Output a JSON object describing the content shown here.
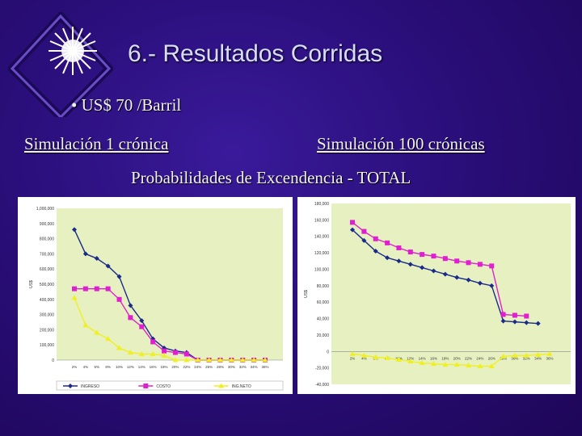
{
  "slide": {
    "title": "6.- Resultados Corridas",
    "bullet": "• US$ 70 /Barril",
    "subtitle_left": "Simulación 1 crónica",
    "subtitle_right": "Simulación 100 crónicas",
    "caption": "Probabilidades de Excendencia - TOTAL"
  },
  "colors": {
    "background": "#2a0e7a",
    "plot_background": "#e6f0c0",
    "series": [
      "#1a2a8a",
      "#e020d0",
      "#f0f020"
    ]
  },
  "chart_data": [
    {
      "type": "line",
      "ylabel": "US$",
      "ylim": [
        0,
        1000000
      ],
      "yticks": [
        "1,000,000",
        "900,000",
        "800,000",
        "700,000",
        "600,000",
        "500,000",
        "400,000",
        "300,000",
        "200,000",
        "100,000",
        "0"
      ],
      "x": [
        "2%",
        "4%",
        "6%",
        "8%",
        "10%",
        "12%",
        "14%",
        "16%",
        "18%",
        "20%",
        "22%",
        "24%",
        "26%",
        "28%",
        "30%",
        "32%",
        "34%",
        "36%"
      ],
      "series": [
        {
          "name": "INGRESO",
          "values": [
            860000,
            700000,
            670000,
            620000,
            550000,
            360000,
            260000,
            140000,
            80000,
            60000,
            50000,
            0,
            0,
            0,
            0,
            0,
            0,
            0
          ]
        },
        {
          "name": "COSTO",
          "values": [
            470000,
            470000,
            470000,
            470000,
            400000,
            280000,
            220000,
            120000,
            60000,
            50000,
            40000,
            0,
            0,
            0,
            0,
            0,
            0,
            0
          ]
        },
        {
          "name": "ING.NETO",
          "values": [
            410000,
            230000,
            180000,
            140000,
            80000,
            50000,
            40000,
            40000,
            30000,
            0,
            0,
            0,
            0,
            0,
            0,
            0,
            0,
            0
          ]
        }
      ],
      "legend_position": "bottom",
      "grid": false
    },
    {
      "type": "line",
      "ylabel": "US$",
      "ylim": [
        -40000,
        180000
      ],
      "yticks": [
        "180,000",
        "160,000",
        "140,000",
        "120,000",
        "100,000",
        "80,000",
        "60,000",
        "40,000",
        "20,000",
        "0",
        "-20,000",
        "-40,000"
      ],
      "x": [
        "2%",
        "4%",
        "6%",
        "8%",
        "10%",
        "12%",
        "14%",
        "16%",
        "18%",
        "20%",
        "22%",
        "24%",
        "26%",
        "28%",
        "30%",
        "32%",
        "34%",
        "36%"
      ],
      "series": [
        {
          "name": "INGRESO",
          "values": [
            148000,
            135000,
            122000,
            114000,
            110000,
            106000,
            102000,
            98000,
            94000,
            90000,
            87000,
            83000,
            80000,
            37000,
            36000,
            35000,
            34000,
            null
          ]
        },
        {
          "name": "COSTO",
          "values": [
            157000,
            146000,
            137000,
            132000,
            126000,
            121000,
            118000,
            116000,
            113000,
            110000,
            108000,
            106000,
            104000,
            45000,
            44000,
            43000,
            null,
            null
          ]
        },
        {
          "name": "ING.NETO",
          "values": [
            -3000,
            -5000,
            -7000,
            -8000,
            -10000,
            -12000,
            -14000,
            -15000,
            -16000,
            -16000,
            -17000,
            -18000,
            -18000,
            -6000,
            -5000,
            -5000,
            -4000,
            -3000
          ]
        }
      ],
      "legend_position": "none",
      "grid": false
    }
  ]
}
